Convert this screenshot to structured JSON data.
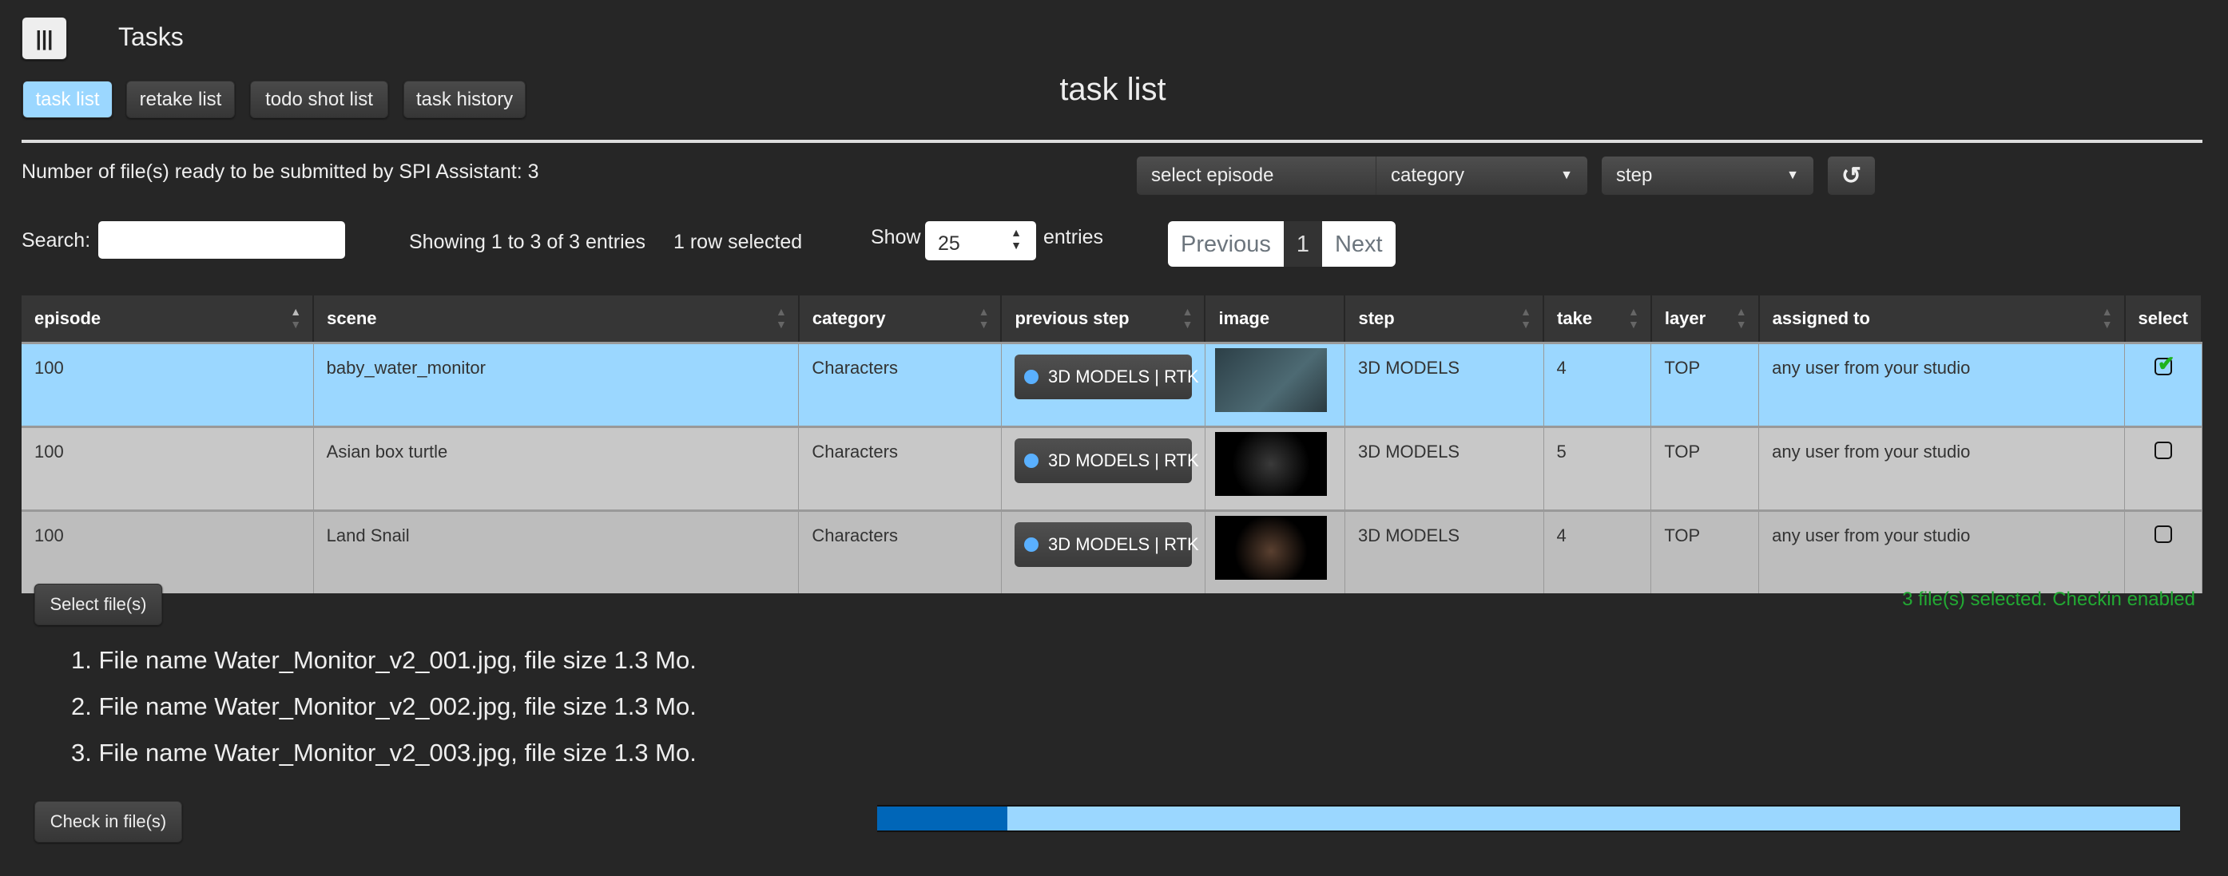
{
  "header": {
    "menu_icon": "hamburger-icon",
    "title": "Tasks"
  },
  "tabs": [
    {
      "label": "task list",
      "active": true
    },
    {
      "label": "retake list"
    },
    {
      "label": "todo shot list"
    },
    {
      "label": "task history"
    }
  ],
  "page_title": "task list",
  "ready_count_text": "Number of file(s) ready to be submitted by SPI Assistant: 3",
  "filters": {
    "episode": "select episode",
    "category": "category",
    "step": "step",
    "reset_icon": "reset-icon"
  },
  "search": {
    "label": "Search:",
    "value": ""
  },
  "info": {
    "showing": "Showing 1 to 3 of 3 entries",
    "selected": "1 row selected"
  },
  "length": {
    "show": "Show",
    "value": "25",
    "entries": "entries"
  },
  "pagination": {
    "previous": "Previous",
    "page": "1",
    "next": "Next"
  },
  "table": {
    "columns": [
      "episode",
      "scene",
      "category",
      "previous step",
      "image",
      "step",
      "take",
      "layer",
      "assigned to",
      "select"
    ],
    "rows": [
      {
        "episode": "100",
        "scene": "baby_water_monitor",
        "category": "Characters",
        "previous_step": "3D MODELS | RTK",
        "step": "3D MODELS",
        "take": "4",
        "layer": "TOP",
        "assigned_to": "any user from your studio",
        "selected": true
      },
      {
        "episode": "100",
        "scene": "Asian box turtle",
        "category": "Characters",
        "previous_step": "3D MODELS | RTK",
        "step": "3D MODELS",
        "take": "5",
        "layer": "TOP",
        "assigned_to": "any user from your studio",
        "selected": false
      },
      {
        "episode": "100",
        "scene": "Land Snail",
        "category": "Characters",
        "previous_step": "3D MODELS | RTK",
        "step": "3D MODELS",
        "take": "4",
        "layer": "TOP",
        "assigned_to": "any user from your studio",
        "selected": false
      }
    ]
  },
  "upload": {
    "select_button": "Select file(s)",
    "status": "3 file(s) selected. Checkin enabled",
    "status_color": "#22aa33",
    "files": [
      "1. File name Water_Monitor_v2_001.jpg, file size 1.3 Mo.",
      "2. File name Water_Monitor_v2_002.jpg, file size 1.3 Mo.",
      "3. File name Water_Monitor_v2_003.jpg, file size 1.3 Mo."
    ],
    "checkin_button": "Check in file(s)",
    "progress_percent": 10
  }
}
